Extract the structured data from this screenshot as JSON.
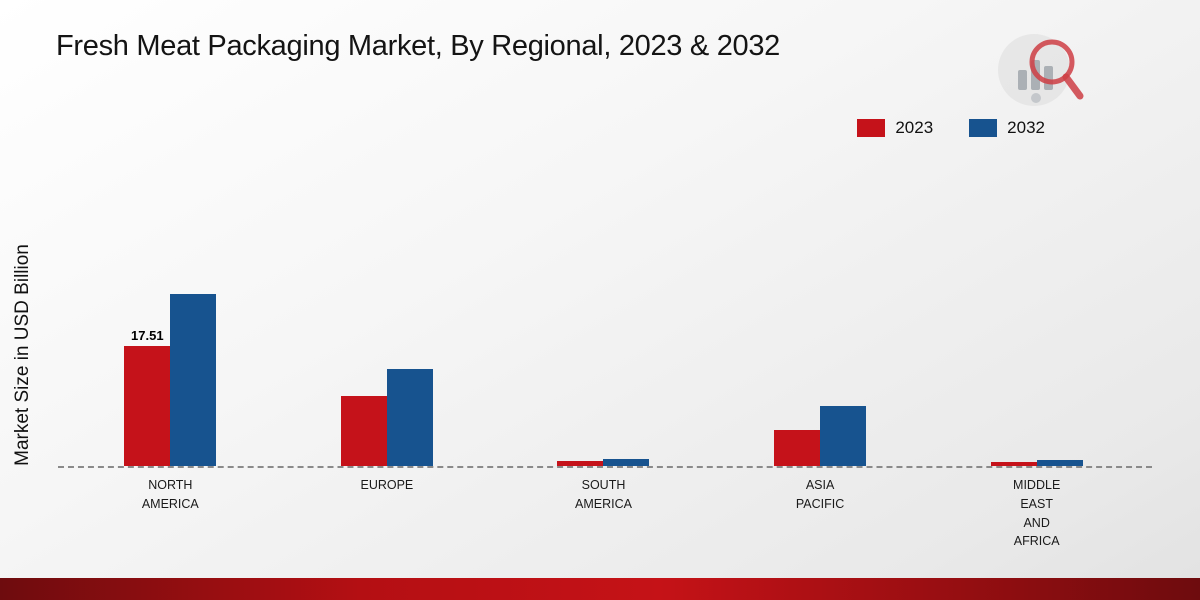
{
  "title": "Fresh Meat Packaging Market, By Regional, 2023 & 2032",
  "ylabel": "Market Size in USD Billion",
  "legend": [
    {
      "label": "2023",
      "color": "#c5121a"
    },
    {
      "label": "2032",
      "color": "#17538f"
    }
  ],
  "chart_data": {
    "type": "bar",
    "title": "Fresh Meat Packaging Market, By Regional, 2023 & 2032",
    "ylabel": "Market Size in USD Billion",
    "categories": [
      "NORTH\nAMERICA",
      "EUROPE",
      "SOUTH\nAMERICA",
      "ASIA\nPACIFIC",
      "MIDDLE\nEAST\nAND\nAFRICA"
    ],
    "series": [
      {
        "name": "2023",
        "color": "#c5121a",
        "values": [
          17.51,
          10.2,
          0.7,
          5.3,
          0.6
        ]
      },
      {
        "name": "2032",
        "color": "#17538f",
        "values": [
          25.1,
          14.1,
          1.0,
          8.8,
          0.9
        ]
      }
    ],
    "annotations": [
      {
        "series_index": 0,
        "category_index": 0,
        "text": "17.51"
      }
    ],
    "ylim": [
      0,
      28
    ],
    "grid": false,
    "baseline_style": "dashed",
    "legend_position": "top-right"
  }
}
